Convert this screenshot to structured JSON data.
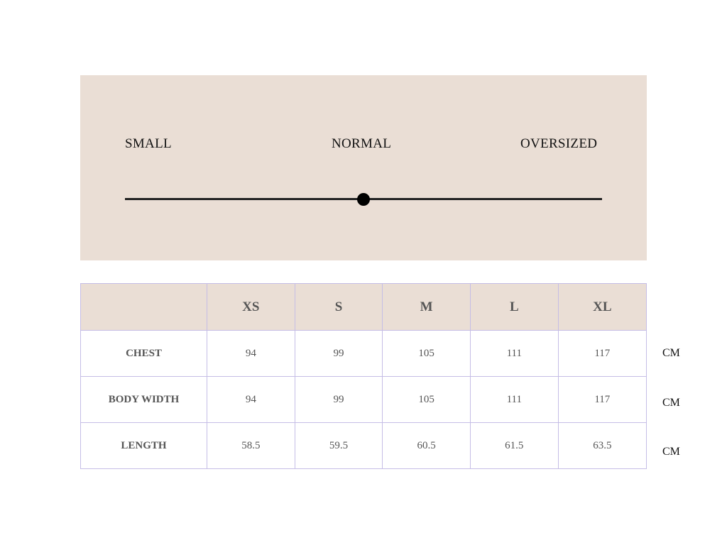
{
  "fit_scale": {
    "labels": [
      "SMALL",
      "NORMAL",
      "OVERSIZED"
    ],
    "value_percent": 50
  },
  "size_table": {
    "headers": [
      "",
      "XS",
      "S",
      "M",
      "L",
      "XL"
    ],
    "rows": [
      {
        "label": "CHEST",
        "values": [
          "94",
          "99",
          "105",
          "111",
          "117"
        ],
        "unit": "CM"
      },
      {
        "label": "BODY WIDTH",
        "values": [
          "94",
          "99",
          "105",
          "111",
          "117"
        ],
        "unit": "CM"
      },
      {
        "label": "LENGTH",
        "values": [
          "58.5",
          "59.5",
          "60.5",
          "61.5",
          "63.5"
        ],
        "unit": "CM"
      }
    ]
  },
  "colors": {
    "panel": "#eaded5",
    "border": "#c5bde6"
  }
}
